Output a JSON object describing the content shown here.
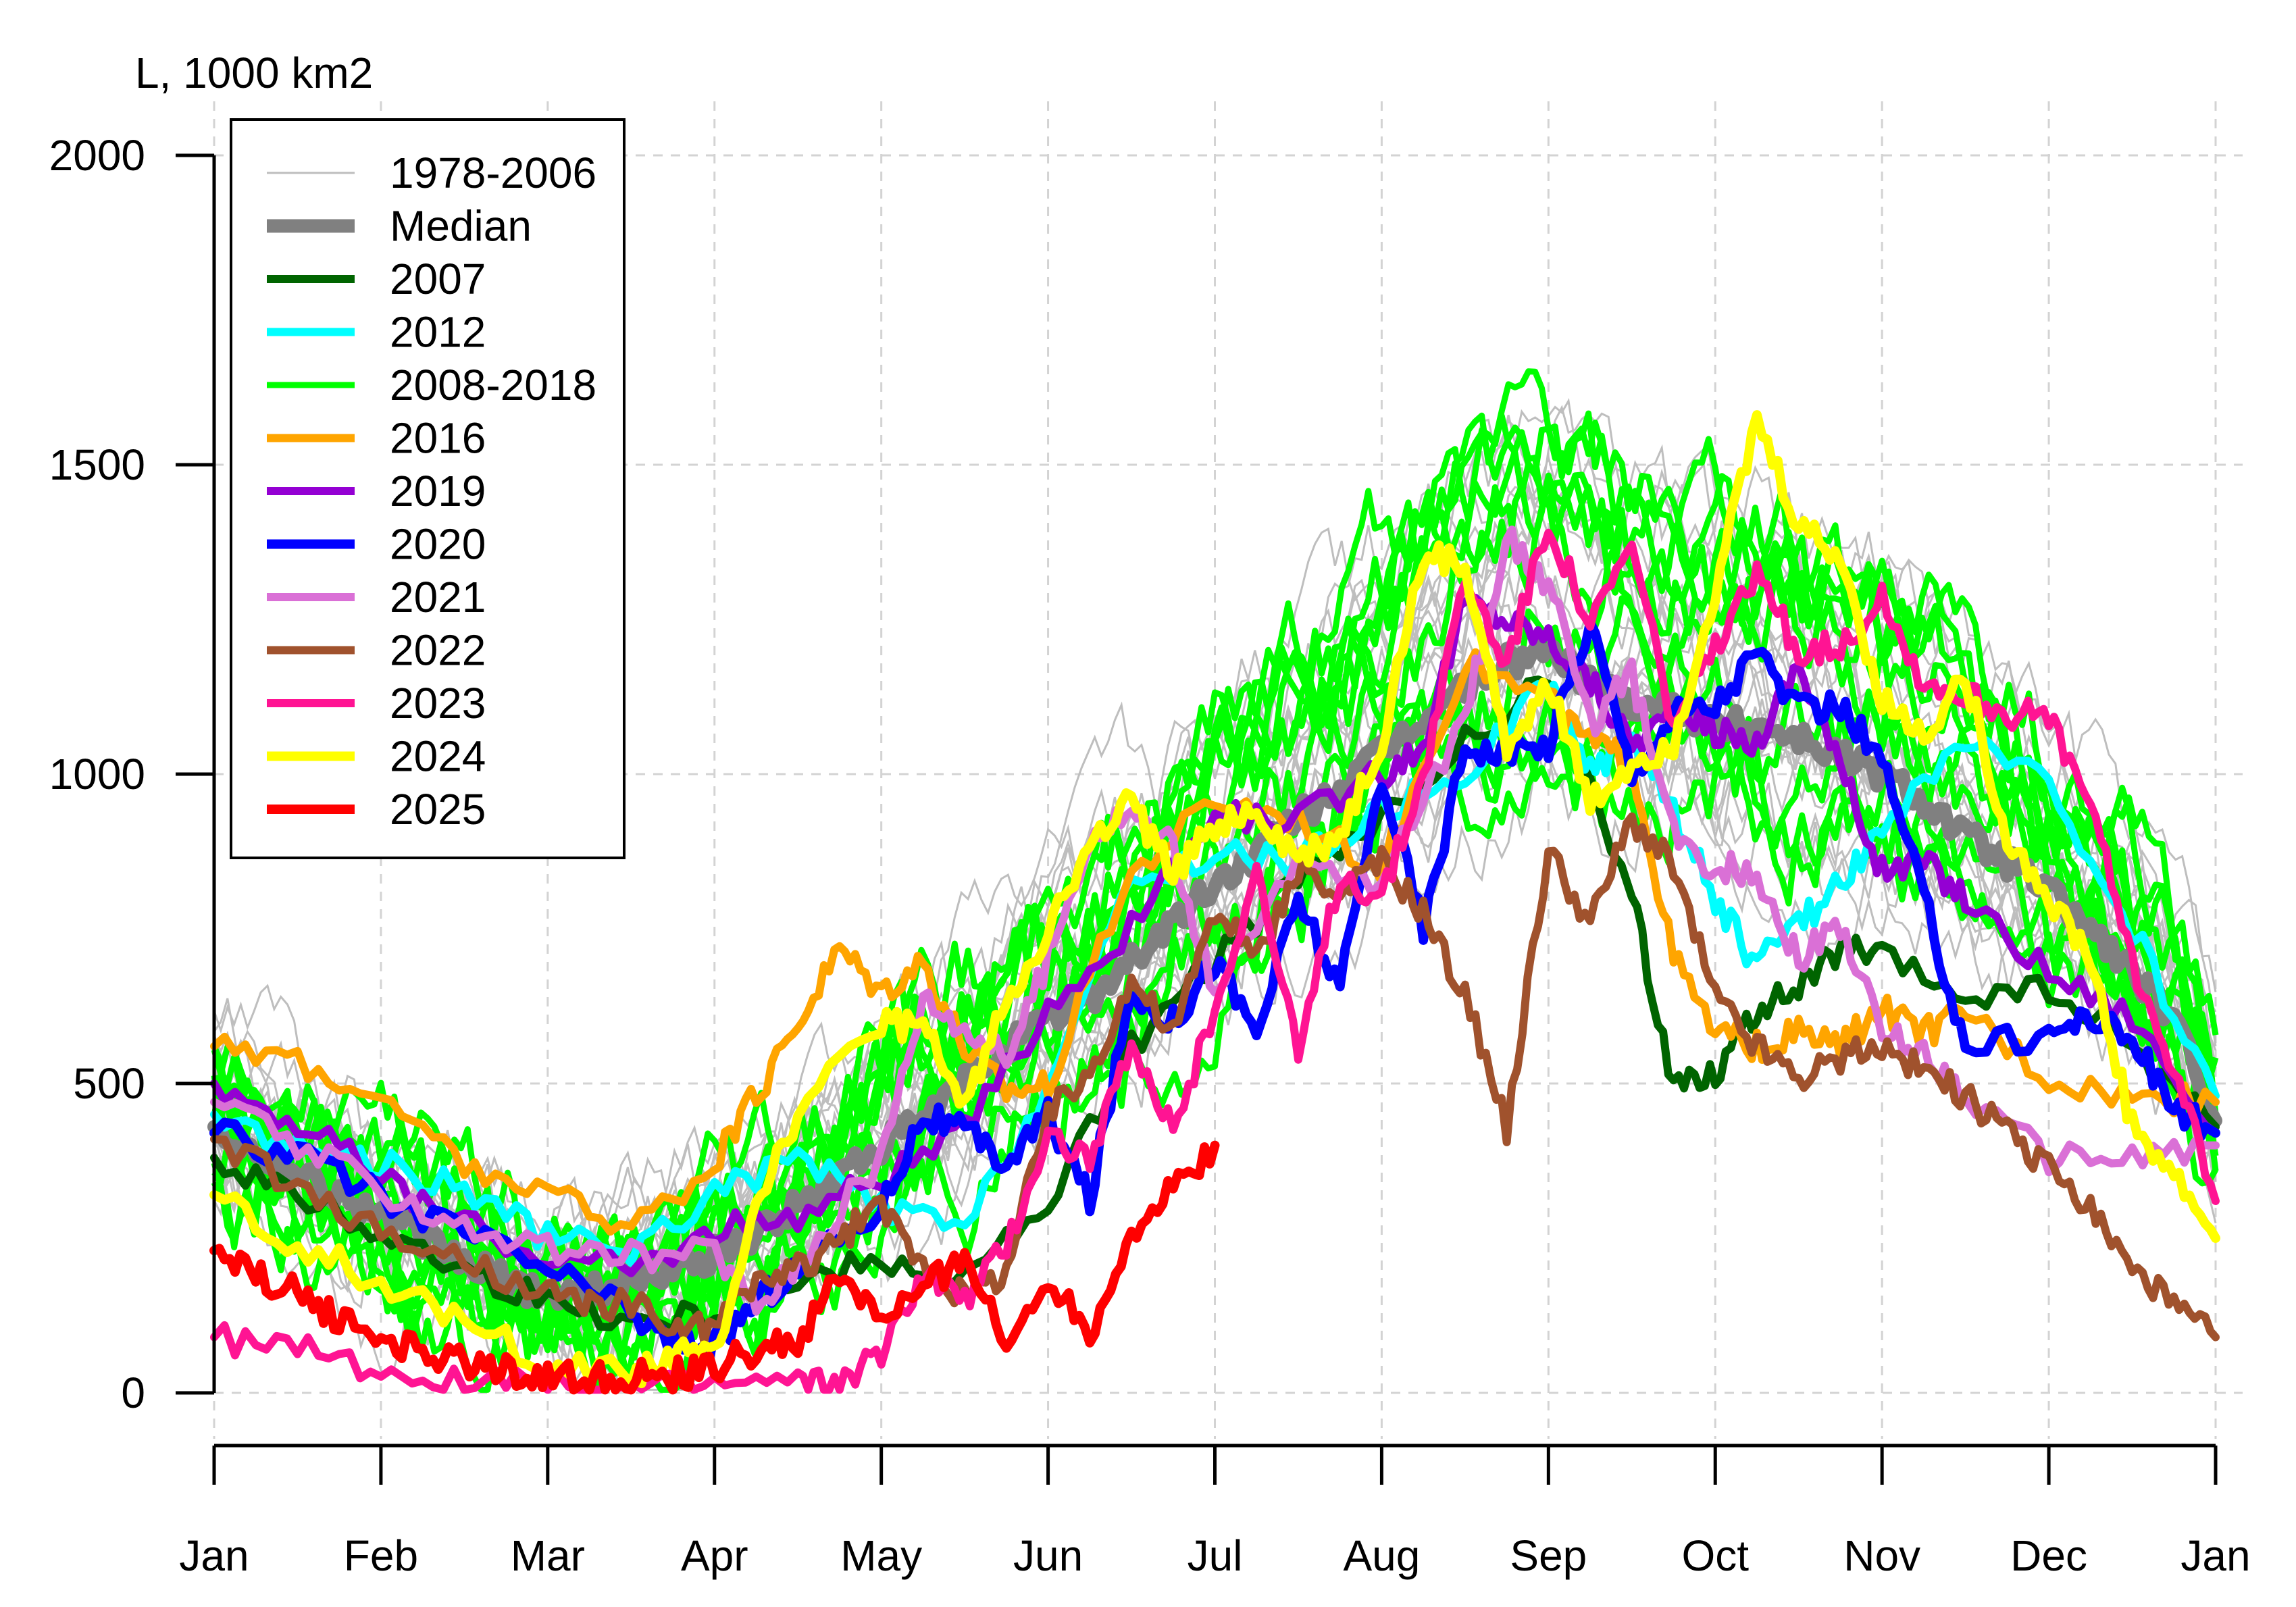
{
  "chart_data": {
    "type": "line",
    "ylabel": "L, 1000 km2",
    "xlabel": "",
    "title": "",
    "ylim": [
      0,
      2000
    ],
    "xlim": [
      0,
      12
    ],
    "yticks": [
      0,
      500,
      1000,
      1500,
      2000
    ],
    "ytick_labels": [
      "0",
      "500",
      "1000",
      "1500",
      "2000"
    ],
    "xtick_labels": [
      "Jan",
      "Feb",
      "Mar",
      "Apr",
      "May",
      "Jun",
      "Jul",
      "Aug",
      "Sep",
      "Oct",
      "Nov",
      "Dec",
      "Jan"
    ],
    "grid": true,
    "legend_position": "top-left",
    "legend": [
      {
        "label": "1978-2006",
        "color": "#bebebe"
      },
      {
        "label": "Median",
        "color": "#808080"
      },
      {
        "label": "2007",
        "color": "#006400"
      },
      {
        "label": "2012",
        "color": "#00ffff"
      },
      {
        "label": "2008-2018",
        "color": "#00ff00"
      },
      {
        "label": "2016",
        "color": "#ffa500"
      },
      {
        "label": "2019",
        "color": "#9400d3"
      },
      {
        "label": "2020",
        "color": "#0000ff"
      },
      {
        "label": "2021",
        "color": "#da70d6"
      },
      {
        "label": "2022",
        "color": "#a0522d"
      },
      {
        "label": "2023",
        "color": "#ff1493"
      },
      {
        "label": "2024",
        "color": "#ffff00"
      },
      {
        "label": "2025",
        "color": "#ff0000"
      }
    ],
    "series": [
      {
        "name": "Median",
        "color": "#808080",
        "width": 20,
        "x": [
          0,
          0.25,
          0.5,
          0.75,
          1,
          1.25,
          1.5,
          1.75,
          2,
          2.25,
          2.5,
          2.75,
          3,
          3.25,
          3.5,
          3.75,
          4,
          4.25,
          4.5,
          4.75,
          5,
          5.25,
          5.5,
          5.75,
          6,
          6.25,
          6.5,
          6.75,
          7,
          7.25,
          7.5,
          7.75,
          8,
          8.25,
          8.5,
          8.75,
          9,
          9.25,
          9.5,
          9.75,
          10,
          10.25,
          10.5,
          10.75,
          11,
          11.25,
          11.5,
          11.75,
          12
        ],
        "y": [
          430,
          390,
          360,
          320,
          290,
          250,
          210,
          180,
          160,
          165,
          185,
          200,
          225,
          260,
          300,
          350,
          400,
          440,
          500,
          560,
          600,
          640,
          700,
          760,
          820,
          870,
          930,
          980,
          1030,
          1090,
          1140,
          1180,
          1200,
          1150,
          1120,
          1110,
          1080,
          1080,
          1060,
          1030,
          1000,
          960,
          900,
          860,
          810,
          750,
          680,
          600,
          440
        ]
      },
      {
        "name": "2007",
        "color": "#006400",
        "width": 12,
        "x": [
          0,
          0.5,
          1,
          1.5,
          2,
          2.5,
          3,
          3.5,
          4,
          4.5,
          5,
          5.5,
          6,
          6.5,
          7,
          7.5,
          8,
          8.5,
          8.75,
          9,
          9.25,
          9.5,
          9.75,
          10,
          10.5,
          11,
          11.5,
          12
        ],
        "y": [
          380,
          320,
          260,
          200,
          150,
          120,
          130,
          180,
          220,
          190,
          300,
          560,
          700,
          830,
          920,
          1050,
          1150,
          800,
          500,
          520,
          620,
          650,
          720,
          700,
          640,
          650,
          560,
          430
        ]
      },
      {
        "name": "2012",
        "color": "#00ffff",
        "width": 12,
        "x": [
          0,
          0.5,
          1,
          1.5,
          2,
          2.5,
          3,
          3.5,
          4,
          4.5,
          5,
          5.5,
          6,
          6.5,
          7,
          7.5,
          8,
          8.25,
          8.5,
          8.75,
          9,
          9.25,
          9.5,
          9.75,
          10,
          10.5,
          11,
          11.5,
          12
        ],
        "y": [
          450,
          400,
          370,
          330,
          250,
          230,
          320,
          380,
          300,
          260,
          500,
          820,
          870,
          860,
          940,
          1000,
          1150,
          1000,
          1060,
          940,
          800,
          690,
          760,
          820,
          920,
          1050,
          980,
          750,
          480
        ]
      },
      {
        "name": "2016",
        "color": "#ffa500",
        "width": 12,
        "x": [
          0,
          0.5,
          1,
          1.5,
          2,
          2.5,
          3,
          3.25,
          3.5,
          3.75,
          4,
          4.25,
          4.5,
          4.75,
          5,
          5.5,
          6,
          6.5,
          7,
          7.5,
          8,
          8.25,
          8.5,
          8.75,
          9,
          9.25,
          9.5,
          9.75,
          10,
          10.25,
          10.5,
          11,
          11.5,
          12
        ],
        "y": [
          560,
          540,
          470,
          370,
          320,
          270,
          370,
          480,
          600,
          720,
          650,
          700,
          560,
          490,
          500,
          840,
          960,
          930,
          850,
          1180,
          1120,
          1050,
          1020,
          700,
          580,
          560,
          580,
          560,
          620,
          580,
          620,
          510,
          480,
          470
        ]
      },
      {
        "name": "2019",
        "color": "#9400d3",
        "width": 12,
        "x": [
          0,
          0.5,
          1,
          1.5,
          2,
          2.5,
          3,
          3.5,
          4,
          4.5,
          5,
          5.5,
          6,
          6.5,
          7,
          7.25,
          7.5,
          7.75,
          8,
          8.25,
          8.5,
          8.75,
          9,
          9.25,
          9.5,
          9.75,
          10,
          10.25,
          10.5,
          11,
          11.5,
          12
        ],
        "y": [
          500,
          440,
          350,
          270,
          220,
          200,
          260,
          290,
          350,
          420,
          620,
          750,
          930,
          930,
          1000,
          1050,
          1280,
          1250,
          1220,
          1150,
          1050,
          1100,
          1070,
          1050,
          1180,
          1010,
          840,
          860,
          800,
          680,
          610,
          420
        ]
      },
      {
        "name": "2020",
        "color": "#0000ff",
        "width": 14,
        "x": [
          0,
          0.5,
          1,
          1.5,
          2,
          2.5,
          2.75,
          3,
          3.25,
          3.5,
          4,
          4.25,
          4.5,
          4.75,
          5,
          5.25,
          5.5,
          5.75,
          6,
          6.25,
          6.5,
          6.75,
          7,
          7.25,
          7.5,
          7.75,
          8,
          8.25,
          8.5,
          8.75,
          9,
          9.25,
          9.5,
          9.75,
          10,
          10.25,
          10.5,
          11,
          11.25,
          11.5,
          11.75,
          12
        ],
        "y": [
          420,
          380,
          320,
          260,
          200,
          130,
          80,
          80,
          150,
          200,
          300,
          450,
          420,
          370,
          450,
          310,
          650,
          600,
          700,
          580,
          800,
          650,
          1000,
          750,
          1050,
          1030,
          1050,
          1250,
          1000,
          1100,
          1110,
          1200,
          1100,
          1110,
          1020,
          800,
          560,
          580,
          610,
          570,
          460,
          420
        ]
      },
      {
        "name": "2021",
        "color": "#da70d6",
        "width": 12,
        "x": [
          0,
          0.5,
          1,
          1.5,
          2,
          2.5,
          3,
          3.25,
          3.5,
          4,
          4.25,
          4.5,
          4.75,
          5,
          5.25,
          5.5,
          5.75,
          6,
          6.5,
          7,
          7.5,
          7.75,
          8,
          8.25,
          8.5,
          8.75,
          9,
          9.25,
          9.5,
          9.75,
          10,
          10.25,
          10.5,
          11,
          11.5,
          12
        ],
        "y": [
          470,
          400,
          330,
          270,
          230,
          220,
          230,
          140,
          210,
          380,
          640,
          590,
          540,
          700,
          900,
          940,
          880,
          640,
          860,
          820,
          1100,
          1380,
          1310,
          1080,
          1160,
          900,
          850,
          840,
          700,
          760,
          580,
          550,
          480,
          380,
          380,
          400
        ]
      },
      {
        "name": "2022",
        "color": "#a0522d",
        "width": 12,
        "x": [
          0,
          0.5,
          1,
          1.5,
          2,
          2.25,
          2.5,
          2.75,
          3,
          3.25,
          3.5,
          3.75,
          4,
          4.25,
          4.5,
          4.75,
          5,
          5.25,
          5.5,
          5.75,
          6,
          6.25,
          6.5,
          6.75,
          7,
          7.25,
          7.5,
          7.75,
          8,
          8.25,
          8.5,
          8.75,
          9,
          9.25,
          9.5,
          9.75,
          10,
          10.25,
          10.5,
          10.75,
          11,
          11.25,
          11.5,
          11.75,
          12
        ],
        "y": [
          410,
          330,
          260,
          210,
          160,
          140,
          150,
          100,
          110,
          180,
          200,
          250,
          300,
          210,
          150,
          200,
          450,
          520,
          670,
          580,
          780,
          700,
          850,
          800,
          860,
          780,
          640,
          430,
          880,
          760,
          930,
          850,
          640,
          560,
          510,
          540,
          560,
          520,
          480,
          420,
          360,
          300,
          200,
          140,
          90
        ]
      },
      {
        "name": "2023",
        "color": "#ff1493",
        "width": 12,
        "x": [
          0,
          0.5,
          1,
          1.5,
          2,
          2.5,
          3,
          3.5,
          3.75,
          4,
          4.25,
          4.5,
          4.75,
          5,
          5.25,
          5.5,
          5.75,
          6,
          6.25,
          6.5,
          6.75,
          7,
          7.25,
          7.5,
          7.75,
          8,
          8.25,
          8.5,
          8.75,
          9,
          9.25,
          9.5,
          9.75,
          10,
          10.25,
          10.5,
          10.75,
          11,
          11.25,
          11.5,
          11.75,
          12
        ],
        "y": [
          90,
          70,
          40,
          15,
          10,
          10,
          15,
          20,
          15,
          60,
          200,
          150,
          240,
          420,
          380,
          550,
          420,
          620,
          850,
          540,
          840,
          800,
          1000,
          1320,
          1180,
          1410,
          1240,
          1370,
          1080,
          1200,
          1320,
          1200,
          1210,
          1280,
          1150,
          1130,
          1100,
          1090,
          950,
          700,
          520,
          310
        ]
      },
      {
        "name": "2024",
        "color": "#ffff00",
        "width": 14,
        "x": [
          0,
          0.5,
          1,
          1.5,
          2,
          2.5,
          2.75,
          3,
          3.25,
          3.5,
          4,
          4.25,
          4.5,
          4.75,
          5,
          5.25,
          5.5,
          5.75,
          6,
          6.25,
          6.5,
          6.75,
          7,
          7.25,
          7.5,
          7.75,
          8,
          8.25,
          8.5,
          8.75,
          9,
          9.25,
          9.5,
          9.75,
          10,
          10.25,
          10.5,
          10.75,
          11,
          11.25,
          11.5,
          11.75,
          12
        ],
        "y": [
          320,
          240,
          180,
          110,
          50,
          30,
          60,
          60,
          310,
          450,
          600,
          590,
          460,
          640,
          750,
          880,
          960,
          830,
          920,
          940,
          860,
          900,
          1050,
          1360,
          1330,
          1050,
          1150,
          950,
          1020,
          1050,
          1300,
          1570,
          1400,
          1350,
          1120,
          1060,
          1160,
          900,
          800,
          700,
          430,
          350,
          250
        ]
      },
      {
        "name": "2025",
        "color": "#ff0000",
        "width": 14,
        "x": [
          0,
          0.25,
          0.5,
          0.75,
          1,
          1.25,
          1.5,
          1.75,
          2,
          2.25,
          2.5,
          2.75,
          3,
          3.25,
          3.5,
          3.75,
          4,
          4.25,
          4.5,
          4.75,
          5,
          5.25,
          5.5,
          5.75,
          6
        ],
        "y": [
          230,
          190,
          160,
          120,
          90,
          70,
          50,
          35,
          25,
          22,
          25,
          30,
          40,
          70,
          80,
          190,
          120,
          160,
          230,
          70,
          190,
          100,
          260,
          330,
          400
        ]
      }
    ]
  }
}
